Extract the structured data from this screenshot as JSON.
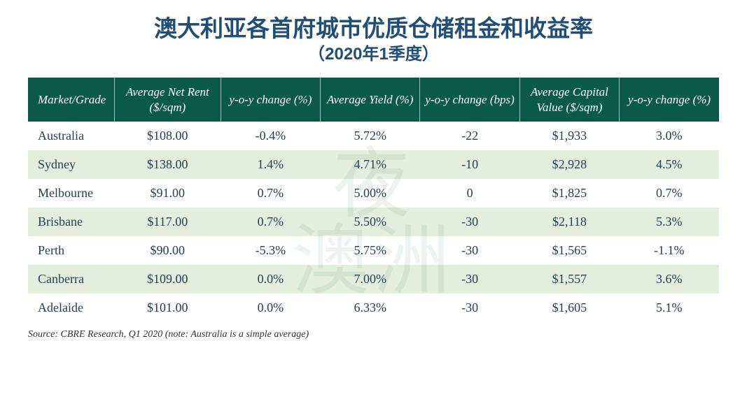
{
  "title": {
    "main": "澳大利亚各首府城市优质仓储租金和收益率",
    "sub": "（2020年1季度）",
    "color": "#1f4e79",
    "fontsize_main": 33,
    "fontsize_sub": 24
  },
  "watermark": {
    "text_top": "夜",
    "text_bottom": "澳洲",
    "color": "rgba(80,140,100,0.10)"
  },
  "table": {
    "type": "table",
    "header_bg": "#0a5a4a",
    "header_text_color": "#ffffff",
    "row_text_color": "#274050",
    "row_bg_odd": "#ffffff",
    "row_bg_even": "#e4eedd",
    "border_color": "#ffffff",
    "fontsize_header": 17,
    "fontsize_body": 18,
    "columns": [
      "Market/Grade",
      "Average Net Rent ($/sqm)",
      "y-o-y change (%)",
      "Average Yield (%)",
      "y-o-y change (bps)",
      "Average Capital Value ($/sqm)",
      "y-o-y change (%)"
    ],
    "rows": [
      [
        "Australia",
        "$108.00",
        "-0.4%",
        "5.72%",
        "-22",
        "$1,933",
        "3.0%"
      ],
      [
        "Sydney",
        "$138.00",
        "1.4%",
        "4.71%",
        "-10",
        "$2,928",
        "4.5%"
      ],
      [
        "Melbourne",
        "$91.00",
        "0.7%",
        "5.00%",
        "0",
        "$1,825",
        "0.7%"
      ],
      [
        "Brisbane",
        "$117.00",
        "0.7%",
        "5.50%",
        "-30",
        "$2,118",
        "5.3%"
      ],
      [
        "Perth",
        "$90.00",
        "-5.3%",
        "5.75%",
        "-30",
        "$1,565",
        "-1.1%"
      ],
      [
        "Canberra",
        "$109.00",
        "0.0%",
        "7.00%",
        "-30",
        "$1,557",
        "3.6%"
      ],
      [
        "Adelaide",
        "$101.00",
        "0.0%",
        "6.33%",
        "-30",
        "$1,605",
        "5.1%"
      ]
    ]
  },
  "source": {
    "text": "Source: CBRE Research, Q1 2020 (note: Australia is a simple average)",
    "color": "#333333",
    "fontsize": 14
  }
}
